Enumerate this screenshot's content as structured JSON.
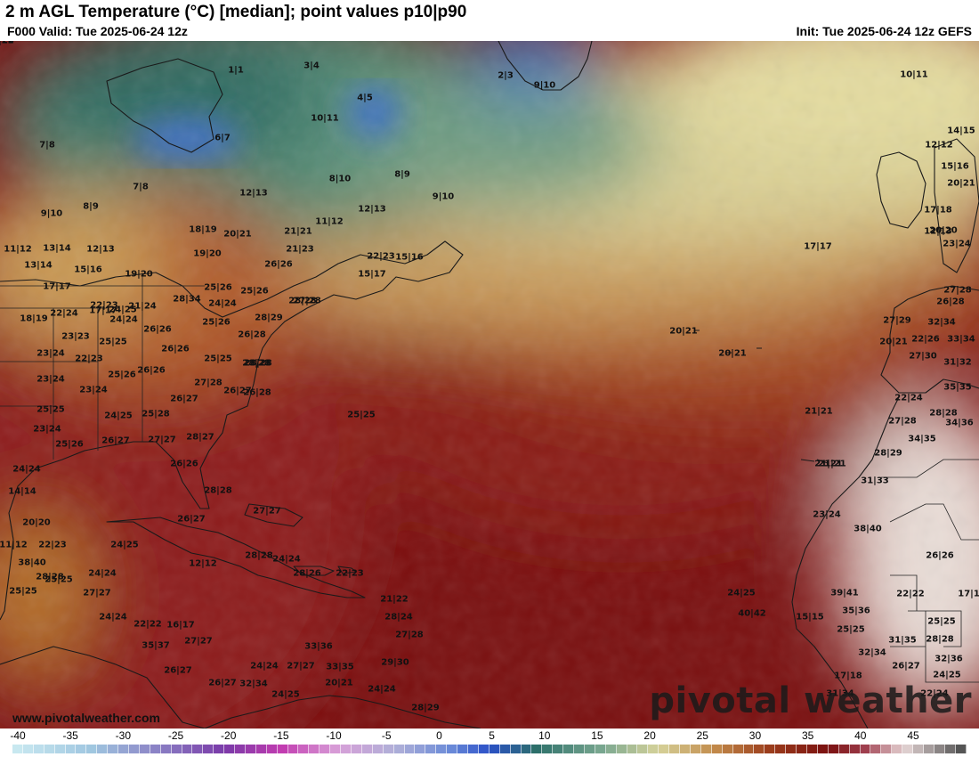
{
  "header": {
    "title": "2 m AGL Temperature (°C) [median]; point values p10|p90",
    "valid": "F000 Valid: Tue 2025-06-24 12z",
    "init": "Init: Tue 2025-06-24 12z GEFS"
  },
  "watermark": "pivotal weather",
  "site": "www.pivotalweather.com",
  "colors": {
    "cold": "#3b73c8",
    "cool": "#2f6a62",
    "mild": "#c9c08a",
    "warm": "#a8481c",
    "hot": "#7a0d0d",
    "desert": "#e8dcd6"
  },
  "legend": {
    "ticks": [
      "-40",
      "-35",
      "-30",
      "-25",
      "-20",
      "-15",
      "-10",
      "-5",
      "0",
      "5",
      "10",
      "15",
      "20",
      "25",
      "30",
      "35",
      "40",
      "45"
    ]
  },
  "points": [
    {
      "label": "1|1"
    },
    {
      "label": "3|4"
    },
    {
      "label": "2|3"
    },
    {
      "label": "9|10"
    },
    {
      "label": "10|11"
    },
    {
      "label": "7|8"
    },
    {
      "label": "6|7"
    },
    {
      "label": "10|11"
    },
    {
      "label": "4|5"
    },
    {
      "label": "14|15"
    },
    {
      "label": "12|12"
    },
    {
      "label": "15|16"
    },
    {
      "label": "7|8"
    },
    {
      "label": "8|10"
    },
    {
      "label": "8|9"
    },
    {
      "label": "9|10"
    },
    {
      "label": "17|17"
    },
    {
      "label": "20|21"
    },
    {
      "label": "12|13"
    },
    {
      "label": "17|18"
    },
    {
      "label": "9|10"
    },
    {
      "label": "12|13"
    },
    {
      "label": "8|9"
    },
    {
      "label": "11|12"
    },
    {
      "label": "12|13"
    },
    {
      "label": "18|19"
    },
    {
      "label": "20|21"
    },
    {
      "label": "21|21"
    },
    {
      "label": "20|20"
    },
    {
      "label": "11|12"
    },
    {
      "label": "13|14"
    },
    {
      "label": "12|13"
    },
    {
      "label": "21|23"
    },
    {
      "label": "19|20"
    },
    {
      "label": "23|24"
    },
    {
      "label": "22|23"
    },
    {
      "label": "15|16"
    },
    {
      "label": "17|17"
    },
    {
      "label": "27|28"
    },
    {
      "label": "13|14"
    },
    {
      "label": "15|16"
    },
    {
      "label": "19|20"
    },
    {
      "label": "26|26"
    },
    {
      "label": "15|17"
    },
    {
      "label": "25|26"
    },
    {
      "label": "17|17"
    },
    {
      "label": "24|25"
    },
    {
      "label": "25|26"
    },
    {
      "label": "27|28"
    },
    {
      "label": "26|28"
    },
    {
      "label": "22|23"
    },
    {
      "label": "21|24"
    },
    {
      "label": "28|34"
    },
    {
      "label": "24|24"
    },
    {
      "label": "28|28"
    },
    {
      "label": "27|29"
    },
    {
      "label": "32|34"
    },
    {
      "label": "18|19"
    },
    {
      "label": "22|24"
    },
    {
      "label": "24|24"
    },
    {
      "label": "25|26"
    },
    {
      "label": "28|29"
    },
    {
      "label": "22|26"
    },
    {
      "label": "33|34"
    },
    {
      "label": "23|23"
    },
    {
      "label": "26|26"
    },
    {
      "label": "26|28"
    },
    {
      "label": "20|21"
    },
    {
      "label": "20|21"
    },
    {
      "label": "25|25"
    },
    {
      "label": "26|26"
    },
    {
      "label": "28|28"
    },
    {
      "label": "20|21"
    },
    {
      "label": "27|30"
    },
    {
      "label": "23|24"
    },
    {
      "label": "22|23"
    },
    {
      "label": "25|25"
    },
    {
      "label": "28|28"
    },
    {
      "label": "31|32"
    },
    {
      "label": "26|26"
    },
    {
      "label": "21|21"
    },
    {
      "label": "23|24"
    },
    {
      "label": "25|26"
    },
    {
      "label": "27|28"
    },
    {
      "label": "35|35"
    },
    {
      "label": "23|24"
    },
    {
      "label": "26|27"
    },
    {
      "label": "26|28"
    },
    {
      "label": "22|24"
    },
    {
      "label": "25|25"
    },
    {
      "label": "25|28"
    },
    {
      "label": "26|27"
    },
    {
      "label": "25|25"
    },
    {
      "label": "21|21"
    },
    {
      "label": "28|28"
    },
    {
      "label": "24|25"
    },
    {
      "label": "27|28"
    },
    {
      "label": "34|36"
    },
    {
      "label": "23|24"
    },
    {
      "label": "26|27"
    },
    {
      "label": "27|27"
    },
    {
      "label": "28|27"
    },
    {
      "label": "34|35"
    },
    {
      "label": "25|26"
    },
    {
      "label": "28|29"
    },
    {
      "label": "24|24"
    },
    {
      "label": "26|26"
    },
    {
      "label": "21|21"
    },
    {
      "label": "38|40"
    },
    {
      "label": "14|14"
    },
    {
      "label": "28|28"
    },
    {
      "label": "31|33"
    },
    {
      "label": "20|20"
    },
    {
      "label": "26|27"
    },
    {
      "label": "27|27"
    },
    {
      "label": "23|24"
    },
    {
      "label": "11|12"
    },
    {
      "label": "22|23"
    },
    {
      "label": "24|25"
    },
    {
      "label": "26|26"
    },
    {
      "label": "38|40"
    },
    {
      "label": "12|12"
    },
    {
      "label": "28|28"
    },
    {
      "label": "24|24"
    },
    {
      "label": "28|26"
    },
    {
      "label": "22|23"
    },
    {
      "label": "25|25"
    },
    {
      "label": "24|24"
    },
    {
      "label": "25|25"
    },
    {
      "label": "27|27"
    },
    {
      "label": "21|22"
    },
    {
      "label": "24|25"
    },
    {
      "label": "22|22"
    },
    {
      "label": "17|17"
    },
    {
      "label": "28|28"
    },
    {
      "label": "24|24"
    },
    {
      "label": "40|42"
    },
    {
      "label": "39|41"
    },
    {
      "label": "22|22"
    },
    {
      "label": "15|15"
    },
    {
      "label": "28|24"
    },
    {
      "label": "35|36"
    },
    {
      "label": "16|17"
    },
    {
      "label": "25|25"
    },
    {
      "label": "27|28"
    },
    {
      "label": "25|25"
    },
    {
      "label": "31|35"
    },
    {
      "label": "28|28"
    },
    {
      "label": "35|37"
    },
    {
      "label": "27|27"
    },
    {
      "label": "32|34"
    },
    {
      "label": "32|36"
    },
    {
      "label": "24|24"
    },
    {
      "label": "27|27"
    },
    {
      "label": "33|35"
    },
    {
      "label": "29|30"
    },
    {
      "label": "33|36"
    },
    {
      "label": "26|27"
    },
    {
      "label": "26|27"
    },
    {
      "label": "20|21"
    },
    {
      "label": "26|27"
    },
    {
      "label": "32|34"
    },
    {
      "label": "17|18"
    },
    {
      "label": "24|25"
    },
    {
      "label": "24|24"
    },
    {
      "label": "24|25"
    },
    {
      "label": "28|29"
    },
    {
      "label": "31|34"
    },
    {
      "label": "22|24"
    },
    {
      "label": "21|22"
    },
    {
      "label": "25|26"
    },
    {
      "label": "25|27"
    }
  ]
}
